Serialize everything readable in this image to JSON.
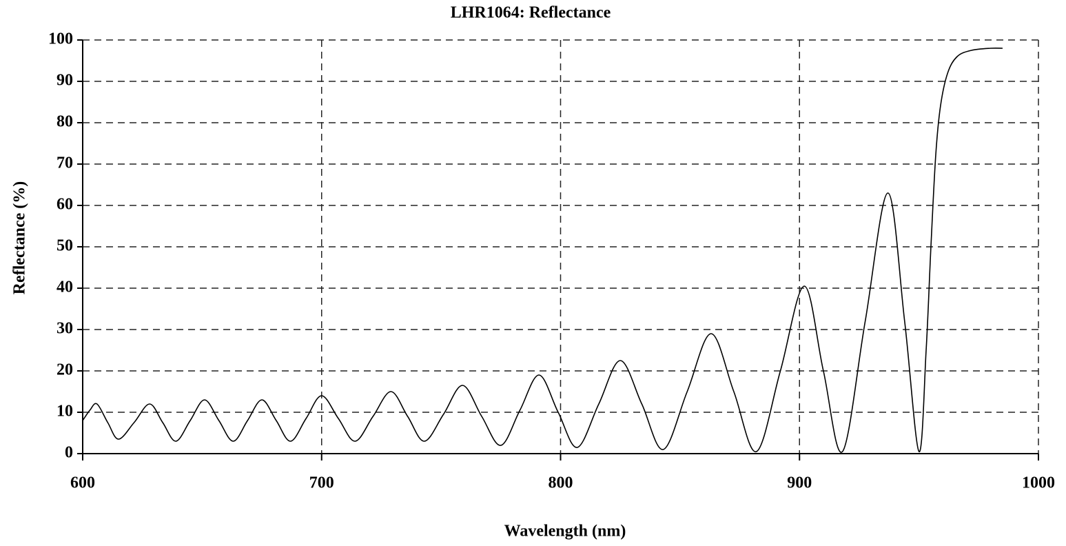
{
  "chart_data": {
    "type": "line",
    "title": "LHR1064: Reflectance",
    "x_label": "Wavelength (nm)",
    "y_label": "Reflectance (%)",
    "x": [
      600,
      603,
      606,
      610.5,
      615,
      621.5,
      628,
      633.5,
      639,
      645,
      651,
      657,
      663,
      669,
      675,
      681,
      687,
      693.5,
      700,
      707,
      714,
      721.5,
      729,
      736,
      743,
      751,
      759,
      767,
      775,
      783,
      791,
      799,
      807,
      816,
      825,
      834,
      843,
      853,
      863,
      872.5,
      882,
      892,
      902,
      910,
      918,
      927.5,
      937,
      944,
      950,
      953,
      955,
      957,
      959,
      962,
      966,
      972,
      980,
      985
    ],
    "series": [
      {
        "name": "Reflectance",
        "color": "#000000",
        "values": [
          8,
          10.5,
          12,
          7.5,
          3.5,
          7.5,
          12,
          7.5,
          3,
          8,
          13,
          8,
          3,
          8,
          13,
          8,
          3,
          8.5,
          14,
          8.5,
          3,
          9,
          15,
          9,
          3,
          9.5,
          16.5,
          9,
          2,
          10.5,
          19,
          10,
          1.5,
          12,
          22.5,
          12,
          1,
          15,
          29,
          15,
          0.5,
          20,
          40.5,
          20,
          0.5,
          32,
          63,
          32,
          0.5,
          25,
          50,
          72,
          84,
          92,
          96,
          97.5,
          98,
          98
        ]
      }
    ],
    "xlim": [
      600,
      1000
    ],
    "ylim": [
      0,
      100
    ],
    "xticks": [
      600,
      700,
      800,
      900,
      1000
    ],
    "yticks": [
      0,
      10,
      20,
      30,
      40,
      50,
      60,
      70,
      80,
      90,
      100
    ],
    "grid": true
  }
}
